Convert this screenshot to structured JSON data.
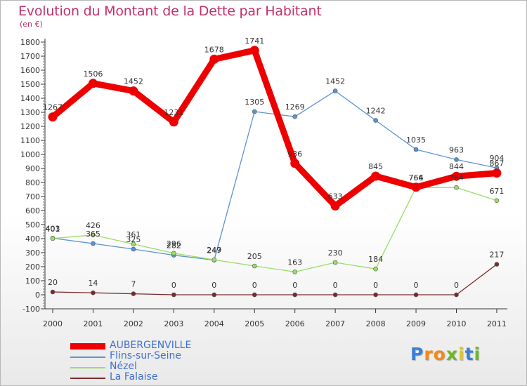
{
  "title": "Evolution du Montant de la Dette par Habitant",
  "subtitle": "(en €)",
  "logo": {
    "letters": [
      "P",
      "r",
      "o",
      "x",
      "i",
      "t",
      "i"
    ],
    "colors": [
      "#3b7fd4",
      "#f08a1c",
      "#f08a1c",
      "#6bb82b",
      "#e6c619",
      "#3b7fd4",
      "#6bb82b"
    ]
  },
  "chart_data": {
    "type": "line",
    "x": [
      "2000",
      "2001",
      "2002",
      "2003",
      "2004",
      "2005",
      "2006",
      "2007",
      "2008",
      "2009",
      "2010",
      "2011"
    ],
    "ylim": [
      -100,
      1800
    ],
    "yticks": [
      "-100",
      "0",
      "100",
      "200",
      "300",
      "400",
      "500",
      "600",
      "700",
      "800",
      "900",
      "1000",
      "1100",
      "1200",
      "1300",
      "1400",
      "1500",
      "1600",
      "1700",
      "1800"
    ],
    "grid": false,
    "legend": "bottom-left",
    "series": [
      {
        "name": "AUBERGENVILLE",
        "color": "#ee0000",
        "values": [
          1267,
          1506,
          1452,
          1231,
          1678,
          1741,
          936,
          633,
          845,
          766,
          844,
          867
        ],
        "labels": [
          "1267",
          "1506",
          "1452",
          "1231",
          "1678",
          "1741",
          "936",
          "633",
          "845",
          "766",
          "844",
          "867"
        ]
      },
      {
        "name": "Flins-sur-Seine",
        "color": "#5b93d2",
        "values": [
          403,
          365,
          325,
          282,
          247,
          1305,
          1269,
          1452,
          1242,
          1035,
          963,
          904
        ],
        "labels": [
          "403",
          "365",
          "325",
          "282",
          "247",
          "1305",
          "1269",
          "1452",
          "1242",
          "1035",
          "963",
          "904"
        ]
      },
      {
        "name": "Nézel",
        "color": "#99dd66",
        "values": [
          401,
          426,
          361,
          296,
          249,
          205,
          163,
          230,
          184,
          764,
          764,
          671
        ],
        "labels": [
          "401",
          "426",
          "361",
          "296",
          "249",
          "205",
          "163",
          "230",
          "184",
          "764",
          "764",
          "671"
        ]
      },
      {
        "name": "La Falaise",
        "color": "#7b2a2a",
        "values": [
          20,
          14,
          7,
          0,
          0,
          0,
          0,
          0,
          0,
          0,
          0,
          217
        ],
        "labels": [
          "20",
          "14",
          "7",
          "0",
          "0",
          "0",
          "0",
          "0",
          "0",
          "0",
          "0",
          "217"
        ]
      }
    ]
  }
}
